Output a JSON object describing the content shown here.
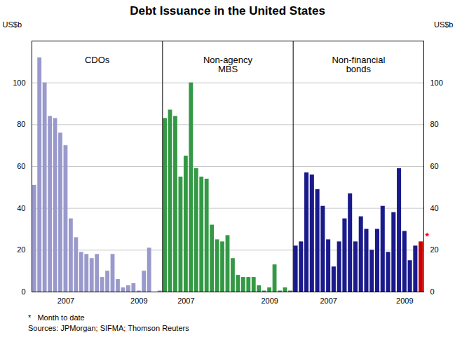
{
  "chart_data": {
    "type": "bar",
    "title": "Debt Issuance in the United States",
    "ylabel": "US$b",
    "y2label": "US$b",
    "ylim": [
      0,
      120
    ],
    "yticks": [
      0,
      20,
      40,
      60,
      80,
      100
    ],
    "y2lim": [
      0,
      120
    ],
    "y2ticks": [
      0,
      20,
      40,
      60,
      80,
      100
    ],
    "grid": true,
    "footnotes": [
      "*   Month to date",
      "Sources: JPMorgan; SIFMA; Thomson Reuters"
    ],
    "series": [
      {
        "name": "CDOs",
        "color": "#9999cc",
        "categories": [
          null,
          null,
          null,
          null,
          null,
          null,
          "2007",
          null,
          null,
          null,
          null,
          null,
          null,
          null,
          null,
          null,
          null,
          null,
          null,
          null,
          "2009",
          null,
          null,
          null,
          null
        ],
        "values": [
          51,
          112,
          100,
          84,
          83,
          76,
          70,
          35,
          26,
          19,
          18,
          16,
          18,
          7,
          10,
          18,
          6,
          2,
          3,
          4,
          0.5,
          10,
          21,
          0,
          0.5
        ]
      },
      {
        "name": "Non-agency\nMBS",
        "color": "#339944",
        "categories": [
          null,
          null,
          null,
          null,
          "2007",
          null,
          null,
          null,
          null,
          null,
          null,
          null,
          null,
          null,
          null,
          null,
          null,
          null,
          null,
          null,
          "2009",
          null,
          null,
          null,
          null
        ],
        "values": [
          83,
          87,
          84,
          55,
          65,
          100,
          59,
          55,
          54,
          32,
          25,
          24,
          27,
          16,
          8,
          7,
          7,
          7,
          3,
          0.5,
          2,
          13,
          0.5,
          2,
          0.5
        ]
      },
      {
        "name": "Non-financial\nbonds",
        "color": "#1a1a8c",
        "colors": [
          "#1a1a8c",
          "#1a1a8c",
          "#1a1a8c",
          "#1a1a8c",
          "#1a1a8c",
          "#1a1a8c",
          "#1a1a8c",
          "#1a1a8c",
          "#1a1a8c",
          "#1a1a8c",
          "#1a1a8c",
          "#1a1a8c",
          "#1a1a8c",
          "#1a1a8c",
          "#1a1a8c",
          "#1a1a8c",
          "#1a1a8c",
          "#1a1a8c",
          "#1a1a8c",
          "#1a1a8c",
          "#1a1a8c",
          "#1a1a8c",
          "#1a1a8c",
          "#cc0000"
        ],
        "categories": [
          null,
          null,
          null,
          null,
          null,
          null,
          "2007",
          null,
          null,
          null,
          null,
          null,
          null,
          null,
          null,
          null,
          null,
          null,
          null,
          null,
          "2009",
          null,
          null,
          null
        ],
        "values": [
          22,
          24,
          57,
          56,
          49,
          41,
          25,
          12,
          24,
          35,
          47,
          24,
          36,
          30,
          20,
          30,
          41,
          19,
          38,
          59,
          29,
          15,
          22,
          24
        ],
        "annotations": [
          {
            "text": "*",
            "color": "red",
            "index": 23
          }
        ]
      }
    ]
  }
}
